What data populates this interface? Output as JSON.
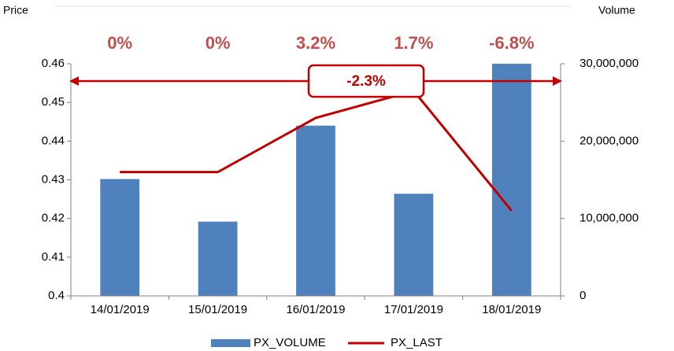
{
  "chart_data": {
    "type": "bar_line",
    "y_label": "Price",
    "y2_label": "Volume",
    "categories": [
      "14/01/2019",
      "15/01/2019",
      "16/01/2019",
      "17/01/2019",
      "18/01/2019"
    ],
    "series": [
      {
        "name": "PX_VOLUME",
        "type": "bar",
        "axis": "y2",
        "color": "#4f81bd",
        "values": [
          15100000,
          9600000,
          22000000,
          13200000,
          30000000
        ]
      },
      {
        "name": "PX_LAST",
        "type": "line",
        "axis": "y",
        "color": "#c00000",
        "values": [
          0.432,
          0.432,
          0.446,
          0.453,
          0.422
        ]
      }
    ],
    "change_labels": [
      "0%",
      "0%",
      "3.2%",
      "1.7%",
      "-6.8%"
    ],
    "overall_change": "-2.3%",
    "ylim": [
      0.4,
      0.46
    ],
    "yticks": [
      0.4,
      0.41,
      0.42,
      0.43,
      0.44,
      0.45,
      0.46
    ],
    "y2lim": [
      0,
      30000000
    ],
    "y2ticks": [
      0,
      {
        "value": 10000000,
        "label": "10,000,000"
      },
      {
        "value": 20000000,
        "label": "20,000,000"
      },
      {
        "value": 30000000,
        "label": "30,000,000"
      }
    ],
    "legend": "bottom"
  }
}
